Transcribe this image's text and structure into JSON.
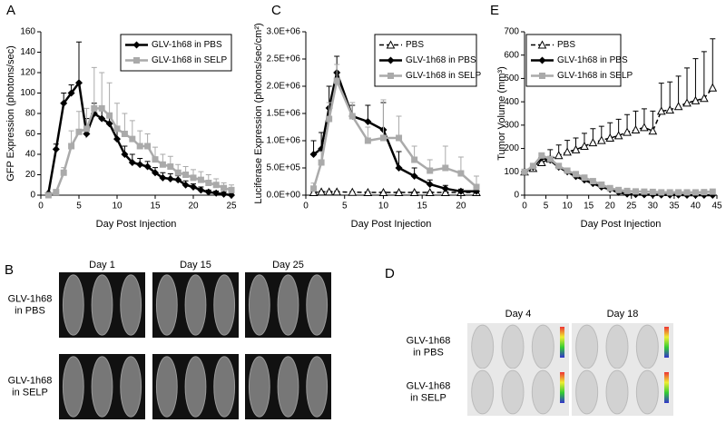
{
  "chart_data": [
    {
      "type": "line",
      "label": "A",
      "xlabel": "Day Post Injection",
      "ylabel": "GFP Expression (photons/sec)",
      "xlim": [
        0,
        25
      ],
      "xticks": [
        0,
        5,
        10,
        15,
        20,
        25
      ],
      "ylim": [
        0,
        160
      ],
      "yticks": [
        0,
        20,
        40,
        60,
        80,
        100,
        120,
        140,
        160
      ],
      "legend": "upper right",
      "x": [
        1,
        2,
        3,
        4,
        5,
        6,
        7,
        8,
        9,
        10,
        11,
        12,
        13,
        14,
        15,
        16,
        17,
        18,
        19,
        20,
        21,
        22,
        23,
        24,
        25
      ],
      "series": [
        {
          "name": "GLV-1h68 in PBS",
          "color": "#000000",
          "marker": "diamond",
          "dashed": false,
          "values": [
            2,
            45,
            90,
            100,
            110,
            60,
            80,
            75,
            70,
            55,
            40,
            32,
            30,
            28,
            22,
            17,
            16,
            15,
            10,
            8,
            5,
            3,
            2,
            1,
            0
          ],
          "errors": [
            0,
            5,
            10,
            8,
            40,
            15,
            10,
            8,
            8,
            8,
            8,
            8,
            6,
            5,
            5,
            5,
            5,
            4,
            4,
            3,
            3,
            2,
            2,
            2,
            2
          ]
        },
        {
          "name": "GLV-1h68 in SELP",
          "color": "#aaaaaa",
          "marker": "square",
          "dashed": false,
          "values": [
            0,
            3,
            22,
            48,
            62,
            65,
            85,
            85,
            78,
            65,
            60,
            55,
            48,
            48,
            35,
            30,
            28,
            22,
            20,
            17,
            15,
            12,
            10,
            7,
            5
          ],
          "errors": [
            0,
            2,
            5,
            15,
            20,
            20,
            40,
            35,
            32,
            25,
            20,
            18,
            15,
            12,
            12,
            10,
            10,
            8,
            8,
            8,
            8,
            8,
            6,
            5,
            5
          ]
        }
      ]
    },
    {
      "type": "line",
      "label": "C",
      "xlabel": "Day Post Injection",
      "ylabel": "Luciferase Expression (photons/sec/cm²)",
      "xlim": [
        0,
        22
      ],
      "xticks": [
        0,
        5,
        10,
        15,
        20
      ],
      "ylim": [
        0,
        3000000
      ],
      "yticks": [
        {
          "value": 0,
          "label": "0.0E+00"
        },
        {
          "value": 500000,
          "label": "5.0E+05"
        },
        {
          "value": 1000000,
          "label": "1.0E+06"
        },
        {
          "value": 1500000,
          "label": "1.5E+06"
        },
        {
          "value": 2000000,
          "label": "2.0E+06"
        },
        {
          "value": 2500000,
          "label": "2.5E+06"
        },
        {
          "value": 3000000,
          "label": "3.0E+06"
        }
      ],
      "legend": "upper right",
      "x": [
        1,
        2,
        3,
        4,
        6,
        8,
        10,
        12,
        14,
        16,
        18,
        20,
        22
      ],
      "series": [
        {
          "name": "PBS",
          "color": "#000000",
          "marker": "triangle",
          "dashed": true,
          "values": [
            50000,
            60000,
            60000,
            60000,
            55000,
            50000,
            50000,
            50000,
            50000,
            50000,
            50000,
            50000,
            50000
          ],
          "errors": [
            10000,
            10000,
            10000,
            10000,
            10000,
            10000,
            10000,
            10000,
            10000,
            10000,
            10000,
            10000,
            10000
          ]
        },
        {
          "name": "GLV-1h68 in PBS",
          "color": "#000000",
          "marker": "diamond",
          "dashed": false,
          "values": [
            750000,
            850000,
            1600000,
            2250000,
            1450000,
            1350000,
            1200000,
            500000,
            350000,
            200000,
            120000,
            70000,
            70000
          ],
          "errors": [
            250000,
            300000,
            400000,
            300000,
            200000,
            300000,
            500000,
            300000,
            150000,
            80000,
            60000,
            40000,
            40000
          ]
        },
        {
          "name": "GLV-1h68 in SELP",
          "color": "#aaaaaa",
          "marker": "square",
          "dashed": false,
          "values": [
            120000,
            600000,
            1400000,
            2100000,
            1450000,
            1000000,
            1050000,
            1050000,
            650000,
            450000,
            500000,
            400000,
            150000
          ],
          "errors": [
            100000,
            200000,
            300000,
            300000,
            250000,
            250000,
            700000,
            400000,
            250000,
            200000,
            400000,
            300000,
            200000
          ]
        }
      ]
    },
    {
      "type": "line",
      "label": "E",
      "xlabel": "Day Post Injection",
      "ylabel": "Tumor Volume (mm³)",
      "xlim": [
        0,
        45
      ],
      "xticks": [
        0,
        5,
        10,
        15,
        20,
        25,
        30,
        35,
        40,
        45
      ],
      "ylim": [
        0,
        700
      ],
      "yticks": [
        0,
        100,
        200,
        300,
        400,
        500,
        600,
        700
      ],
      "legend": "upper left",
      "x": [
        0,
        2,
        4,
        6,
        8,
        10,
        12,
        14,
        16,
        18,
        20,
        22,
        24,
        26,
        28,
        30,
        32,
        34,
        36,
        38,
        40,
        42,
        44
      ],
      "series": [
        {
          "name": "PBS",
          "color": "#000000",
          "marker": "triangle",
          "dashed": true,
          "values": [
            100,
            115,
            140,
            155,
            170,
            185,
            195,
            210,
            225,
            235,
            245,
            255,
            270,
            280,
            290,
            275,
            360,
            365,
            380,
            395,
            405,
            415,
            460
          ],
          "errors": [
            10,
            20,
            30,
            40,
            45,
            50,
            50,
            55,
            60,
            60,
            65,
            70,
            75,
            80,
            80,
            85,
            120,
            120,
            130,
            150,
            180,
            200,
            210
          ]
        },
        {
          "name": "GLV-1h68 in PBS",
          "color": "#000000",
          "marker": "diamond",
          "dashed": false,
          "values": [
            100,
            120,
            160,
            150,
            120,
            100,
            80,
            65,
            50,
            35,
            25,
            12,
            5,
            3,
            2,
            2,
            1,
            1,
            1,
            0,
            0,
            0,
            0
          ]
        },
        {
          "name": "GLV-1h68 in SELP",
          "color": "#aaaaaa",
          "marker": "square",
          "dashed": false,
          "values": [
            100,
            125,
            170,
            155,
            125,
            105,
            90,
            75,
            60,
            45,
            30,
            22,
            18,
            16,
            15,
            14,
            12,
            12,
            12,
            12,
            12,
            13,
            15
          ]
        }
      ]
    }
  ],
  "image_panels": [
    {
      "label": "B",
      "columns": [
        "Day 1",
        "Day 15",
        "Day 25"
      ],
      "rows": [
        [
          "GLV-1h68",
          "in PBS"
        ],
        [
          "GLV-1h68",
          "in SELP"
        ]
      ]
    },
    {
      "label": "D",
      "columns": [
        "Day 4",
        "Day 18"
      ],
      "rows": [
        [
          "GLV-1h68",
          "in PBS"
        ],
        [
          "GLV-1h68",
          "in SELP"
        ]
      ]
    }
  ]
}
